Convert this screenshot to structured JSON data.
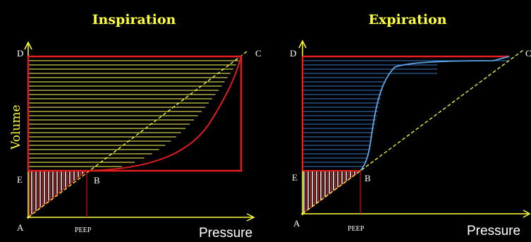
{
  "titles": {
    "left": "Inspiration",
    "right": "Expiration"
  },
  "points": {
    "a": "A",
    "b": "B",
    "c": "C",
    "d": "D",
    "e": "E"
  },
  "axes": {
    "x": "Pressure",
    "y": "Volume",
    "tick": "PEEP"
  },
  "colors": {
    "background": "#000000",
    "title": "#ffff3a",
    "axis": "#ffff3a",
    "boundary": "#e11d1d",
    "inspiration_fill": "#ffff66",
    "expiration_fill": "#3a7ac8",
    "expiration_curve": "#5ea8e6",
    "compliance_line": "#ffff3a",
    "work_fill": "#ffffff"
  }
}
